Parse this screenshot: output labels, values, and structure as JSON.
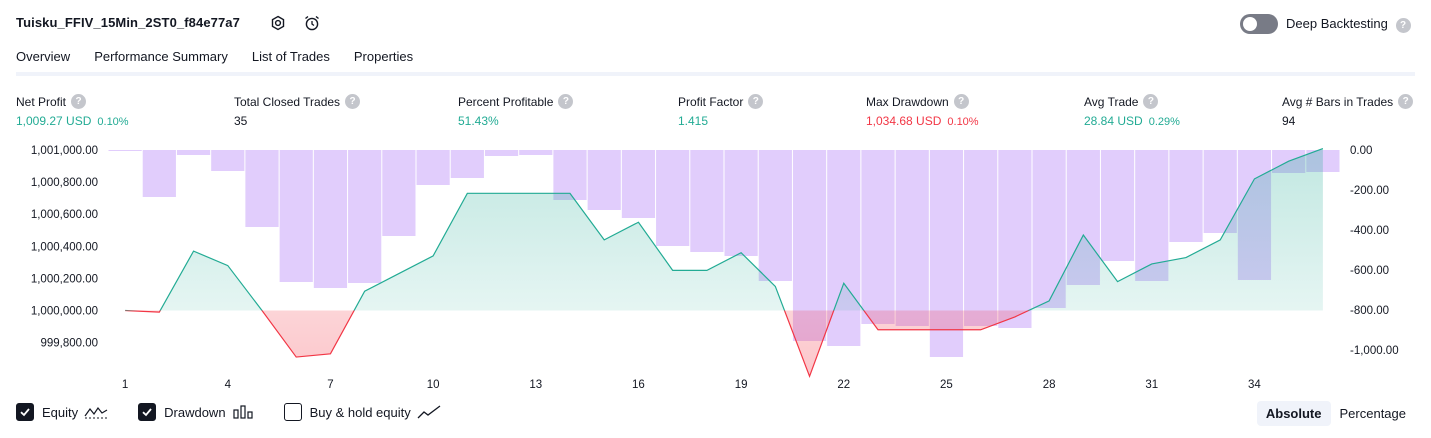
{
  "header": {
    "strategy_name": "Tuisku_FFIV_15Min_2ST0_f84e77a7",
    "deep_backtesting_label": "Deep Backtesting",
    "deep_backtesting_enabled": false,
    "help_glyph": "?"
  },
  "tabs": [
    {
      "label": "Overview",
      "active": true
    },
    {
      "label": "Performance Summary",
      "active": false
    },
    {
      "label": "List of Trades",
      "active": false
    },
    {
      "label": "Properties",
      "active": false
    }
  ],
  "metrics": [
    {
      "label": "Net Profit",
      "value": "1,009.27 USD",
      "pct": "0.10%",
      "tone": "green"
    },
    {
      "label": "Total Closed Trades",
      "value": "35",
      "pct": "",
      "tone": "dark"
    },
    {
      "label": "Percent Profitable",
      "value": "51.43%",
      "pct": "",
      "tone": "green"
    },
    {
      "label": "Profit Factor",
      "value": "1.415",
      "pct": "",
      "tone": "green"
    },
    {
      "label": "Max Drawdown",
      "value": "1,034.68 USD",
      "pct": "0.10%",
      "tone": "red"
    },
    {
      "label": "Avg Trade",
      "value": "28.84 USD",
      "pct": "0.29%",
      "tone": "green"
    },
    {
      "label": "Avg # Bars in Trades",
      "value": "94",
      "pct": "",
      "tone": "dark"
    }
  ],
  "legend": {
    "equity_label": "Equity",
    "equity_checked": true,
    "drawdown_label": "Drawdown",
    "drawdown_checked": true,
    "buyhold_label": "Buy & hold equity",
    "buyhold_checked": false
  },
  "view_toggle": {
    "options": [
      "Absolute",
      "Percentage"
    ],
    "selected": "Absolute"
  },
  "colors": {
    "equity_up": "#22ab94",
    "equity_down": "#f23645",
    "drawdown_bar": "#dcc4fc",
    "text": "#131722",
    "axis_text": "#131722"
  },
  "chart_data": {
    "type": "line+bar",
    "x_ticks": [
      "1",
      "4",
      "7",
      "10",
      "13",
      "16",
      "19",
      "22",
      "25",
      "28",
      "31",
      "34"
    ],
    "left_axis": {
      "ticks": [
        "1,001,000.00",
        "1,000,800.00",
        "1,000,600.00",
        "1,000,400.00",
        "1,000,200.00",
        "1,000,000.00",
        "999,800.00"
      ],
      "ylim": [
        999700,
        1001000
      ]
    },
    "right_axis": {
      "ticks": [
        "0.00",
        "-200.00",
        "-400.00",
        "-600.00",
        "-800.00",
        "-1,000.00"
      ],
      "ylim": [
        -1100,
        0
      ]
    },
    "equity": {
      "name": "Equity",
      "x": [
        1,
        2,
        3,
        4,
        5,
        6,
        7,
        8,
        9,
        10,
        11,
        12,
        13,
        14,
        15,
        16,
        17,
        18,
        19,
        20,
        21,
        22,
        23,
        24,
        25,
        26,
        27,
        28,
        29,
        30,
        31,
        32,
        33,
        34,
        35,
        36
      ],
      "values": [
        1000000,
        999990,
        1000370,
        1000280,
        1000000,
        999710,
        999730,
        1000120,
        1000230,
        1000340,
        1000730,
        1000730,
        1000730,
        1000730,
        1000440,
        1000550,
        1000250,
        1000250,
        1000360,
        1000150,
        999590,
        1000170,
        999880,
        999880,
        999880,
        999880,
        999960,
        1000060,
        1000470,
        1000180,
        1000290,
        1000330,
        1000440,
        1000820,
        1000930,
        1001009
      ]
    },
    "drawdown": {
      "name": "Drawdown",
      "x": [
        1,
        2,
        3,
        4,
        5,
        6,
        7,
        8,
        9,
        10,
        11,
        12,
        13,
        14,
        15,
        16,
        17,
        18,
        19,
        20,
        21,
        22,
        23,
        24,
        25,
        26,
        27,
        28,
        29,
        30,
        31,
        32,
        33,
        34,
        35,
        36
      ],
      "values": [
        -5,
        -235,
        -25,
        -105,
        -385,
        -660,
        -690,
        -665,
        -430,
        -175,
        -140,
        -30,
        -25,
        -250,
        -300,
        -340,
        -480,
        -510,
        -530,
        -655,
        -955,
        -980,
        -870,
        -880,
        -1035,
        -880,
        -890,
        -790,
        -675,
        -555,
        -655,
        -460,
        -415,
        -650,
        -115,
        -110
      ]
    }
  }
}
